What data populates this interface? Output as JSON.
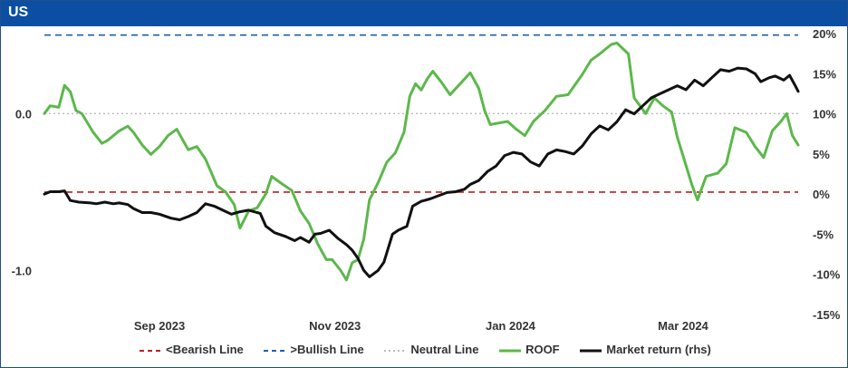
{
  "window": {
    "title": "US"
  },
  "colors": {
    "bearish": "#b22222",
    "bullish": "#1f5fa8",
    "neutral": "#bbbbbb",
    "roof": "#5cb84a",
    "market": "#111111",
    "title_bg": "#0b4ea2"
  },
  "legend": {
    "bearish": "<Bearish Line",
    "bullish": ">Bullish Line",
    "neutral": "Neutral Line",
    "roof": "ROOF",
    "market": "Market return (rhs)"
  },
  "chart_data": {
    "type": "line",
    "title": "US",
    "x_range": [
      "2023-08-01",
      "2024-04-19"
    ],
    "x_ticks": [
      {
        "date": "2023-09-10",
        "label": "Sep 2023"
      },
      {
        "date": "2023-11-10",
        "label": "Nov 2023"
      },
      {
        "date": "2024-01-10",
        "label": "Jan 2024"
      },
      {
        "date": "2024-03-10",
        "label": "Mar 2024"
      }
    ],
    "y_left": {
      "range": [
        -1.28,
        0.51
      ],
      "ticks": [
        {
          "value": 0.0,
          "label": "0.0"
        },
        {
          "value": -1.0,
          "label": "-1.0"
        }
      ]
    },
    "y_right": {
      "range": [
        -15,
        20
      ],
      "ticks": [
        {
          "value": 20,
          "label": "20%"
        },
        {
          "value": 15,
          "label": "15%"
        },
        {
          "value": 10,
          "label": "10%"
        },
        {
          "value": 5,
          "label": "5%"
        },
        {
          "value": 0,
          "label": "0%"
        },
        {
          "value": -5,
          "label": "-5%"
        },
        {
          "value": -10,
          "label": "-10%"
        },
        {
          "value": -15,
          "label": "-15%"
        }
      ]
    },
    "reference_lines": {
      "bullish": 0.5,
      "neutral": 0.0,
      "bearish": -0.5
    },
    "grid": false,
    "legend_position": "bottom",
    "series": [
      {
        "name": "ROOF",
        "axis": "left",
        "points": [
          [
            "2023-08-01",
            0.0
          ],
          [
            "2023-08-03",
            0.05
          ],
          [
            "2023-08-06",
            0.04
          ],
          [
            "2023-08-08",
            0.18
          ],
          [
            "2023-08-10",
            0.14
          ],
          [
            "2023-08-12",
            0.02
          ],
          [
            "2023-08-14",
            0.0
          ],
          [
            "2023-08-18",
            -0.12
          ],
          [
            "2023-08-21",
            -0.19
          ],
          [
            "2023-08-23",
            -0.17
          ],
          [
            "2023-08-27",
            -0.11
          ],
          [
            "2023-08-30",
            -0.08
          ],
          [
            "2023-09-01",
            -0.12
          ],
          [
            "2023-09-04",
            -0.2
          ],
          [
            "2023-09-07",
            -0.26
          ],
          [
            "2023-09-10",
            -0.21
          ],
          [
            "2023-09-13",
            -0.14
          ],
          [
            "2023-09-16",
            -0.1
          ],
          [
            "2023-09-20",
            -0.23
          ],
          [
            "2023-09-23",
            -0.21
          ],
          [
            "2023-09-26",
            -0.29
          ],
          [
            "2023-09-30",
            -0.46
          ],
          [
            "2023-10-03",
            -0.5
          ],
          [
            "2023-10-06",
            -0.58
          ],
          [
            "2023-10-08",
            -0.73
          ],
          [
            "2023-10-11",
            -0.62
          ],
          [
            "2023-10-14",
            -0.6
          ],
          [
            "2023-10-17",
            -0.51
          ],
          [
            "2023-10-19",
            -0.4
          ],
          [
            "2023-10-22",
            -0.44
          ],
          [
            "2023-10-26",
            -0.49
          ],
          [
            "2023-10-29",
            -0.62
          ],
          [
            "2023-11-01",
            -0.7
          ],
          [
            "2023-11-04",
            -0.83
          ],
          [
            "2023-11-07",
            -0.93
          ],
          [
            "2023-11-09",
            -0.93
          ],
          [
            "2023-11-12",
            -1.0
          ],
          [
            "2023-11-14",
            -1.06
          ],
          [
            "2023-11-16",
            -0.95
          ],
          [
            "2023-11-18",
            -0.93
          ],
          [
            "2023-11-20",
            -0.8
          ],
          [
            "2023-11-22",
            -0.55
          ],
          [
            "2023-11-25",
            -0.44
          ],
          [
            "2023-11-28",
            -0.31
          ],
          [
            "2023-12-01",
            -0.25
          ],
          [
            "2023-12-04",
            -0.12
          ],
          [
            "2023-12-06",
            0.11
          ],
          [
            "2023-12-08",
            0.19
          ],
          [
            "2023-12-10",
            0.15
          ],
          [
            "2023-12-12",
            0.22
          ],
          [
            "2023-12-14",
            0.27
          ],
          [
            "2023-12-17",
            0.2
          ],
          [
            "2023-12-20",
            0.12
          ],
          [
            "2023-12-24",
            0.2
          ],
          [
            "2023-12-27",
            0.26
          ],
          [
            "2023-12-30",
            0.16
          ],
          [
            "2024-01-01",
            0.02
          ],
          [
            "2024-01-03",
            -0.07
          ],
          [
            "2024-01-06",
            -0.06
          ],
          [
            "2024-01-09",
            -0.05
          ],
          [
            "2024-01-12",
            -0.1
          ],
          [
            "2024-01-15",
            -0.14
          ],
          [
            "2024-01-18",
            -0.05
          ],
          [
            "2024-01-22",
            0.02
          ],
          [
            "2024-01-26",
            0.11
          ],
          [
            "2024-01-30",
            0.12
          ],
          [
            "2024-02-04",
            0.25
          ],
          [
            "2024-02-07",
            0.34
          ],
          [
            "2024-02-10",
            0.38
          ],
          [
            "2024-02-14",
            0.44
          ],
          [
            "2024-02-16",
            0.45
          ],
          [
            "2024-02-20",
            0.38
          ],
          [
            "2024-02-22",
            0.1
          ],
          [
            "2024-02-26",
            0.0
          ],
          [
            "2024-02-29",
            0.1
          ],
          [
            "2024-03-03",
            0.05
          ],
          [
            "2024-03-06",
            0.01
          ],
          [
            "2024-03-08",
            -0.15
          ],
          [
            "2024-03-11",
            -0.33
          ],
          [
            "2024-03-13",
            -0.45
          ],
          [
            "2024-03-15",
            -0.55
          ],
          [
            "2024-03-18",
            -0.4
          ],
          [
            "2024-03-22",
            -0.38
          ],
          [
            "2024-03-25",
            -0.32
          ],
          [
            "2024-03-28",
            -0.09
          ],
          [
            "2024-04-01",
            -0.12
          ],
          [
            "2024-04-04",
            -0.21
          ],
          [
            "2024-04-07",
            -0.28
          ],
          [
            "2024-04-10",
            -0.11
          ],
          [
            "2024-04-13",
            -0.05
          ],
          [
            "2024-04-15",
            0.0
          ],
          [
            "2024-04-17",
            -0.14
          ],
          [
            "2024-04-19",
            -0.2
          ]
        ]
      },
      {
        "name": "Market return (rhs)",
        "axis": "right",
        "points": [
          [
            "2023-08-01",
            0.0
          ],
          [
            "2023-08-03",
            0.3
          ],
          [
            "2023-08-06",
            0.3
          ],
          [
            "2023-08-08",
            0.4
          ],
          [
            "2023-08-10",
            -0.8
          ],
          [
            "2023-08-13",
            -1.0
          ],
          [
            "2023-08-17",
            -1.1
          ],
          [
            "2023-08-19",
            -1.2
          ],
          [
            "2023-08-22",
            -1.0
          ],
          [
            "2023-08-25",
            -1.2
          ],
          [
            "2023-08-27",
            -1.1
          ],
          [
            "2023-08-30",
            -1.3
          ],
          [
            "2023-09-01",
            -1.8
          ],
          [
            "2023-09-04",
            -2.3
          ],
          [
            "2023-09-07",
            -2.3
          ],
          [
            "2023-09-10",
            -2.5
          ],
          [
            "2023-09-14",
            -3.0
          ],
          [
            "2023-09-17",
            -3.2
          ],
          [
            "2023-09-20",
            -2.8
          ],
          [
            "2023-09-23",
            -2.3
          ],
          [
            "2023-09-26",
            -1.2
          ],
          [
            "2023-09-29",
            -1.5
          ],
          [
            "2023-10-02",
            -2.0
          ],
          [
            "2023-10-05",
            -2.5
          ],
          [
            "2023-10-08",
            -2.2
          ],
          [
            "2023-10-11",
            -2.0
          ],
          [
            "2023-10-15",
            -2.4
          ],
          [
            "2023-10-17",
            -4.0
          ],
          [
            "2023-10-20",
            -4.8
          ],
          [
            "2023-10-24",
            -5.3
          ],
          [
            "2023-10-27",
            -5.8
          ],
          [
            "2023-10-29",
            -5.4
          ],
          [
            "2023-11-01",
            -6.0
          ],
          [
            "2023-11-03",
            -5.0
          ],
          [
            "2023-11-05",
            -4.9
          ],
          [
            "2023-11-08",
            -4.5
          ],
          [
            "2023-11-11",
            -5.5
          ],
          [
            "2023-11-14",
            -6.3
          ],
          [
            "2023-11-16",
            -7.0
          ],
          [
            "2023-11-18",
            -8.0
          ],
          [
            "2023-11-20",
            -9.5
          ],
          [
            "2023-11-22",
            -10.3
          ],
          [
            "2023-11-25",
            -9.5
          ],
          [
            "2023-11-27",
            -8.5
          ],
          [
            "2023-11-30",
            -5.0
          ],
          [
            "2023-12-02",
            -4.5
          ],
          [
            "2023-12-05",
            -4.0
          ],
          [
            "2023-12-07",
            -1.5
          ],
          [
            "2023-12-10",
            -0.9
          ],
          [
            "2023-12-13",
            -0.6
          ],
          [
            "2023-12-16",
            -0.2
          ],
          [
            "2023-12-19",
            0.2
          ],
          [
            "2023-12-22",
            0.3
          ],
          [
            "2023-12-25",
            0.6
          ],
          [
            "2023-12-27",
            1.2
          ],
          [
            "2023-12-30",
            1.7
          ],
          [
            "2024-01-02",
            2.8
          ],
          [
            "2024-01-05",
            3.5
          ],
          [
            "2024-01-08",
            4.8
          ],
          [
            "2024-01-11",
            5.2
          ],
          [
            "2024-01-14",
            5.0
          ],
          [
            "2024-01-17",
            4.0
          ],
          [
            "2024-01-20",
            3.5
          ],
          [
            "2024-01-23",
            5.0
          ],
          [
            "2024-01-26",
            5.5
          ],
          [
            "2024-01-29",
            5.3
          ],
          [
            "2024-02-01",
            5.0
          ],
          [
            "2024-02-04",
            6.0
          ],
          [
            "2024-02-07",
            7.5
          ],
          [
            "2024-02-10",
            8.5
          ],
          [
            "2024-02-13",
            8.0
          ],
          [
            "2024-02-16",
            9.0
          ],
          [
            "2024-02-19",
            10.5
          ],
          [
            "2024-02-22",
            10.0
          ],
          [
            "2024-02-25",
            11.0
          ],
          [
            "2024-02-28",
            12.0
          ],
          [
            "2024-03-02",
            12.5
          ],
          [
            "2024-03-05",
            13.0
          ],
          [
            "2024-03-08",
            13.5
          ],
          [
            "2024-03-11",
            13.0
          ],
          [
            "2024-03-14",
            14.2
          ],
          [
            "2024-03-17",
            13.5
          ],
          [
            "2024-03-20",
            14.5
          ],
          [
            "2024-03-23",
            15.5
          ],
          [
            "2024-03-26",
            15.3
          ],
          [
            "2024-03-29",
            15.7
          ],
          [
            "2024-04-01",
            15.6
          ],
          [
            "2024-04-04",
            15.0
          ],
          [
            "2024-04-06",
            14.0
          ],
          [
            "2024-04-09",
            14.5
          ],
          [
            "2024-04-11",
            14.7
          ],
          [
            "2024-04-14",
            14.2
          ],
          [
            "2024-04-16",
            14.8
          ],
          [
            "2024-04-18",
            13.5
          ],
          [
            "2024-04-19",
            12.8
          ]
        ]
      }
    ]
  }
}
